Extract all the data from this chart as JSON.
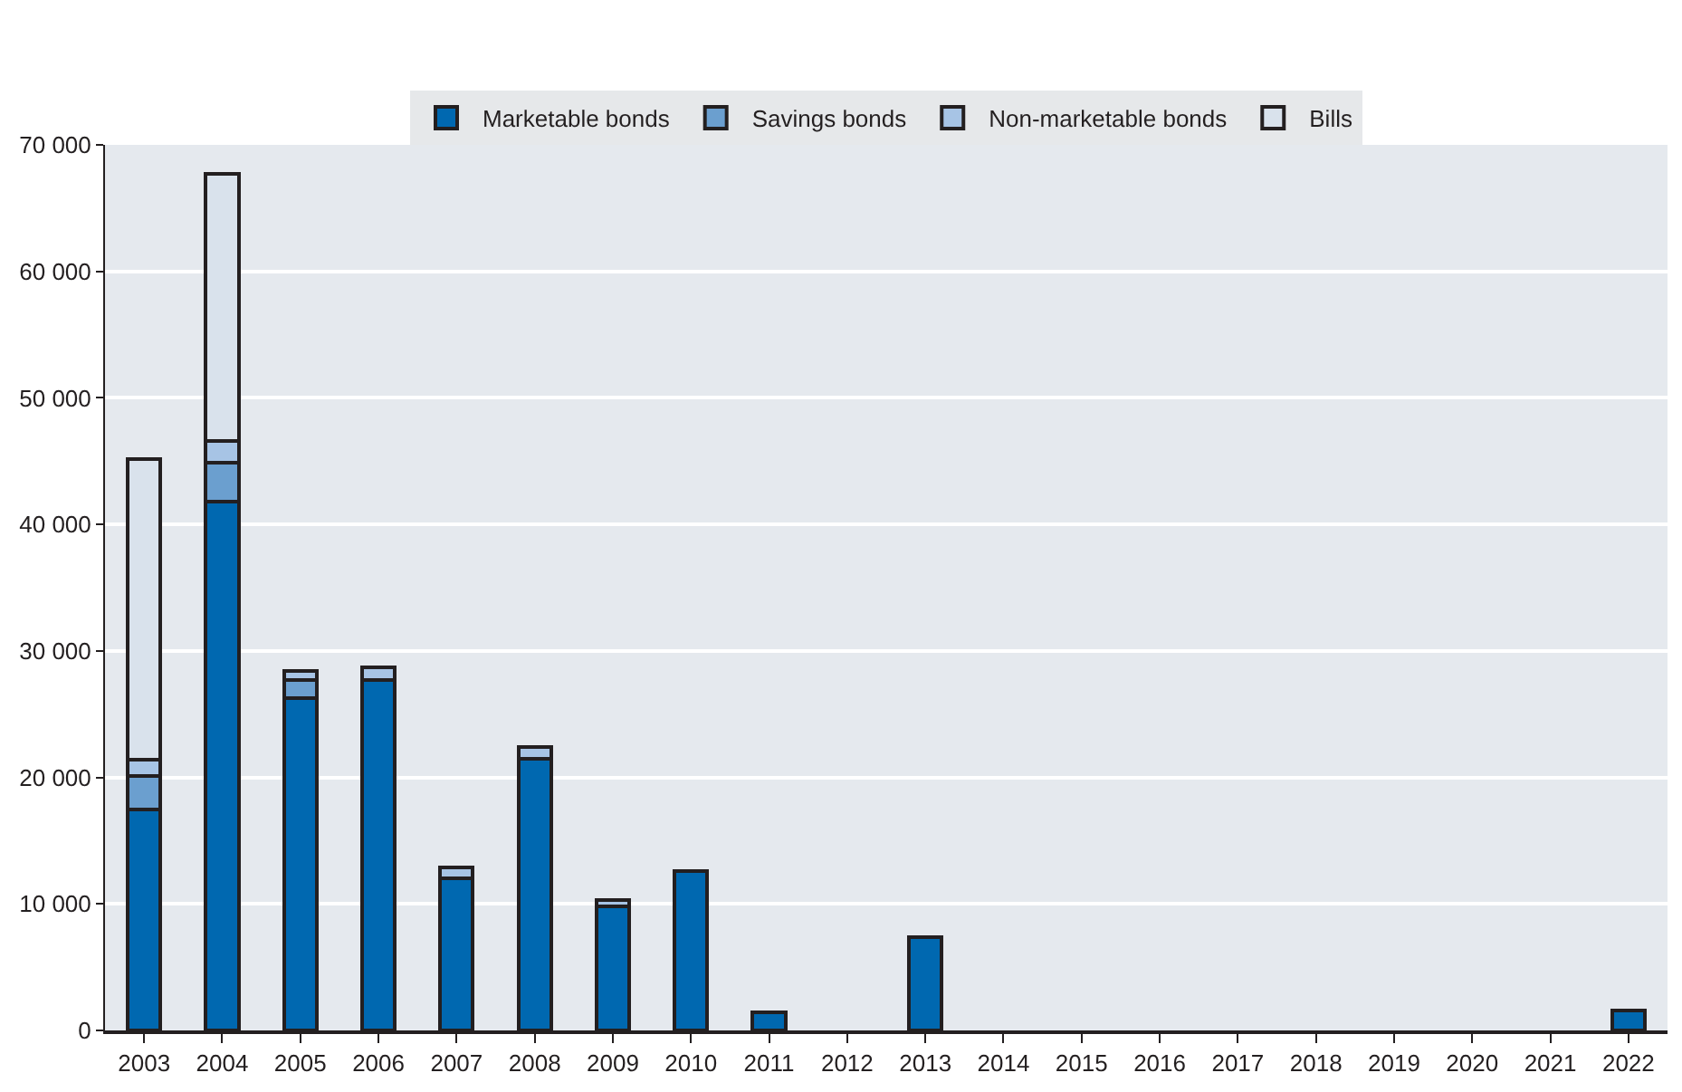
{
  "chart_data": {
    "type": "bar",
    "stacked": true,
    "categories": [
      "2003",
      "2004",
      "2005",
      "2006",
      "2007",
      "2008",
      "2009",
      "2010",
      "2011",
      "2012",
      "2013",
      "2014",
      "2015",
      "2016",
      "2017",
      "2018",
      "2019",
      "2020",
      "2021",
      "2022"
    ],
    "series": [
      {
        "name": "Marketable bonds",
        "color": "#0068b0",
        "values": [
          17500,
          41800,
          26300,
          27700,
          12000,
          21500,
          9800,
          12600,
          1400,
          null,
          7400,
          null,
          null,
          null,
          null,
          null,
          null,
          null,
          null,
          1600
        ]
      },
      {
        "name": "Savings bonds",
        "color": "#6b9fcf",
        "values": [
          2600,
          3100,
          1400,
          null,
          null,
          null,
          null,
          null,
          null,
          null,
          null,
          null,
          null,
          null,
          null,
          null,
          null,
          null,
          null,
          null
        ]
      },
      {
        "name": "Non-marketable bonds",
        "color": "#a7c4e5",
        "values": [
          1300,
          1700,
          700,
          1000,
          900,
          900,
          500,
          null,
          null,
          null,
          null,
          null,
          null,
          null,
          null,
          null,
          null,
          null,
          null,
          null
        ]
      },
      {
        "name": "Bills",
        "color": "#d9e2ec",
        "values": [
          23800,
          21100,
          null,
          null,
          null,
          null,
          null,
          null,
          null,
          null,
          null,
          null,
          null,
          null,
          null,
          null,
          null,
          null,
          null,
          null
        ]
      }
    ],
    "ylim": [
      0,
      70000
    ],
    "yticks": [
      {
        "value": 0,
        "label": "0"
      },
      {
        "value": 10000,
        "label": "10 000"
      },
      {
        "value": 20000,
        "label": "20 000"
      },
      {
        "value": 30000,
        "label": "30 000"
      },
      {
        "value": 40000,
        "label": "40 000"
      },
      {
        "value": 50000,
        "label": "50 000"
      },
      {
        "value": 60000,
        "label": "60 000"
      },
      {
        "value": 70000,
        "label": "70 000"
      }
    ],
    "grid": "y",
    "legend": "top"
  }
}
